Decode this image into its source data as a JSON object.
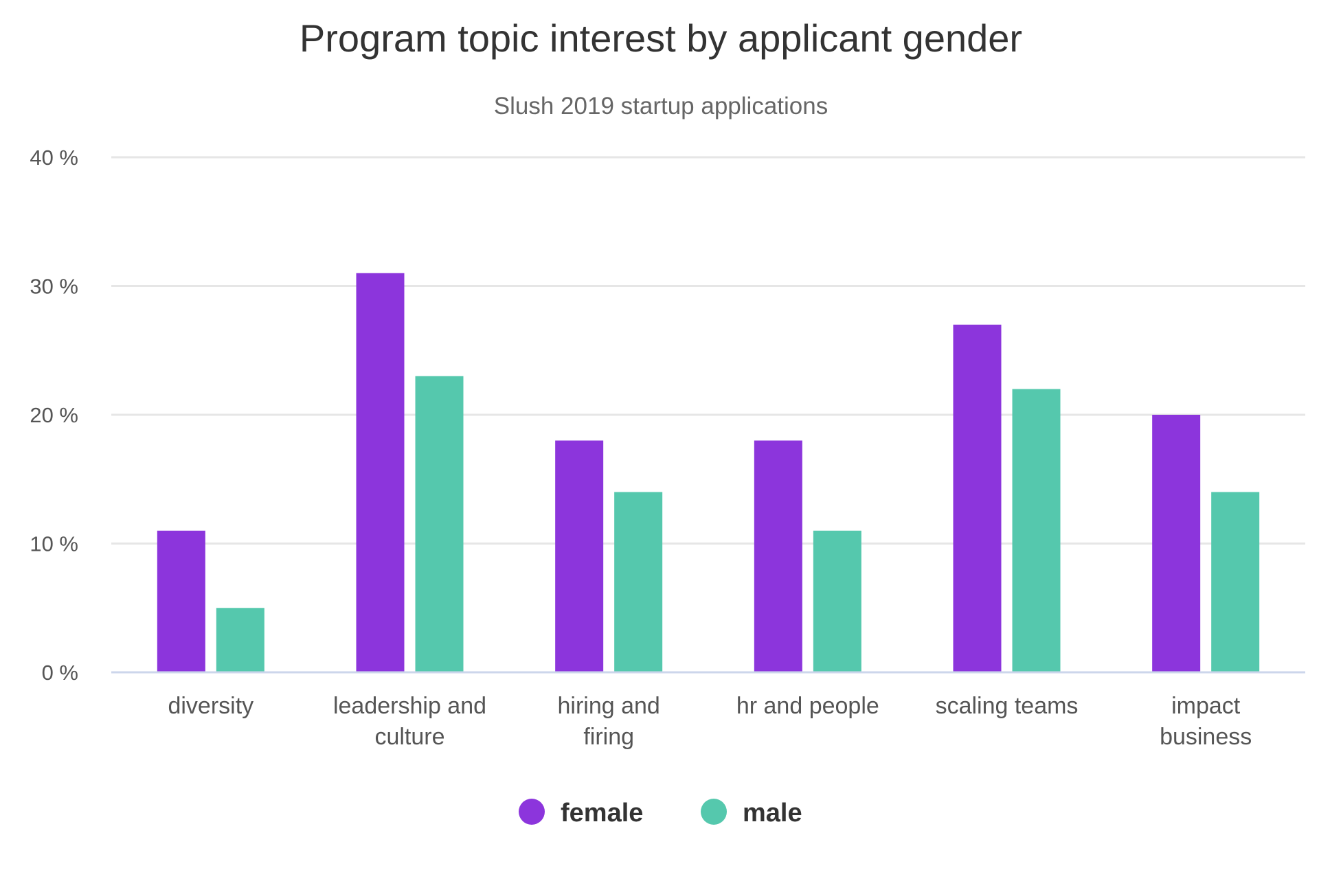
{
  "chart_data": {
    "type": "bar",
    "title": "Program topic interest by applicant gender",
    "subtitle": "Slush 2019 startup applications",
    "xlabel": "",
    "ylabel": "",
    "ylim": [
      0,
      40
    ],
    "yticks": [
      {
        "value": 0,
        "label": "0 %"
      },
      {
        "value": 10,
        "label": "10 %"
      },
      {
        "value": 20,
        "label": "20 %"
      },
      {
        "value": 30,
        "label": "30 %"
      },
      {
        "value": 40,
        "label": "40 %"
      }
    ],
    "categories": [
      [
        "diversity"
      ],
      [
        "leadership and",
        "culture"
      ],
      [
        "hiring and",
        "firing"
      ],
      [
        "hr and people"
      ],
      [
        "scaling teams"
      ],
      [
        "impact",
        "business"
      ]
    ],
    "series": [
      {
        "name": "female",
        "color": "#8c35dc",
        "values": [
          11,
          31,
          18,
          18,
          27,
          20
        ]
      },
      {
        "name": "male",
        "color": "#55c8ad",
        "values": [
          5,
          23,
          14,
          11,
          22,
          14
        ]
      }
    ],
    "grid": true,
    "legend_position": "bottom-center"
  }
}
